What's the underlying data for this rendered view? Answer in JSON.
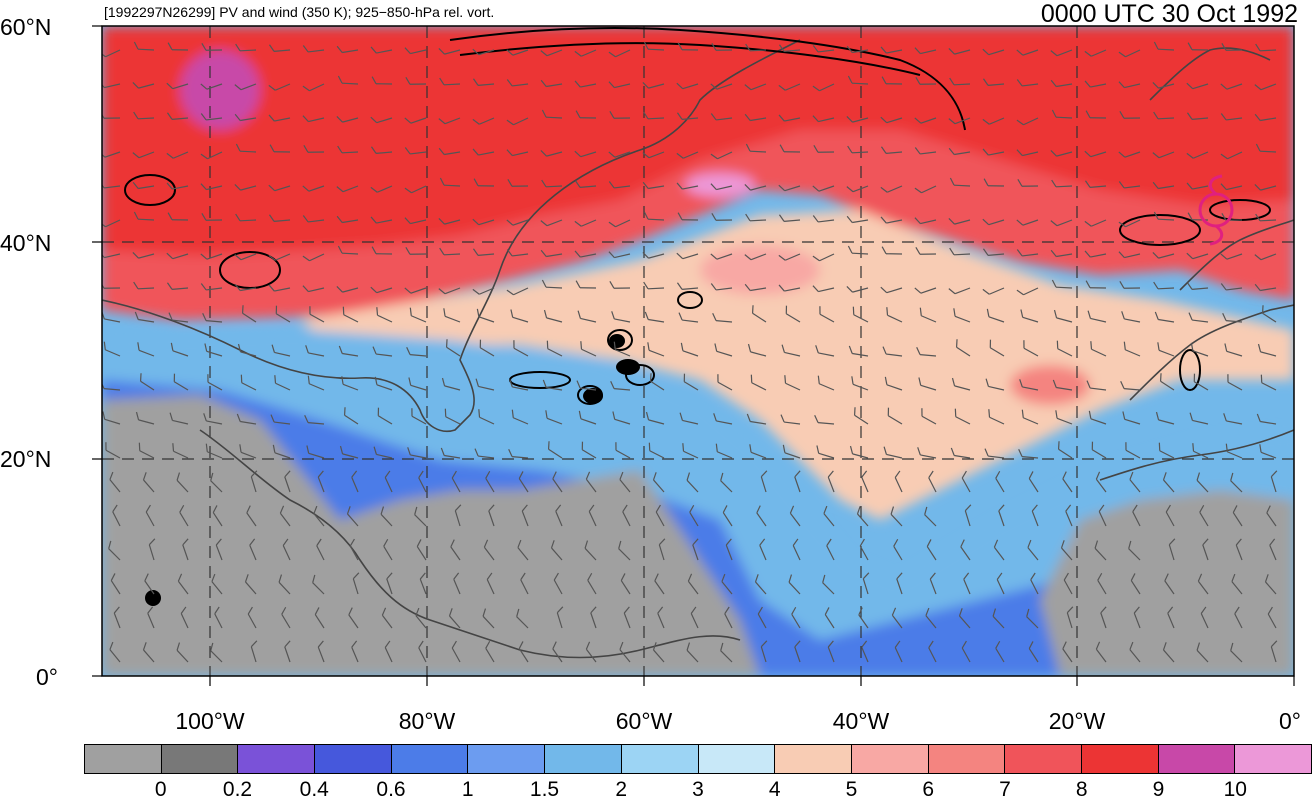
{
  "header": {
    "left_title": "[1992297N26299] PV and wind (350 K); 925−850-hPa rel. vort.",
    "right_title": "0000 UTC 30 Oct 1992"
  },
  "map": {
    "lat_labels": [
      "60°N",
      "40°N",
      "20°N",
      "0°"
    ],
    "lon_labels": [
      "100°W",
      "80°W",
      "60°W",
      "40°W",
      "20°W",
      "0°"
    ],
    "extent": {
      "lon_min": -110,
      "lon_max": 0,
      "lat_min": 0,
      "lat_max": 60
    },
    "pv_regions": [
      {
        "name": "northern-high-pv",
        "band": 8
      },
      {
        "name": "midlatitude-moderate-pv",
        "band": 6
      },
      {
        "name": "subtropical-low-pv",
        "band": 3
      },
      {
        "name": "tropical-very-low-pv",
        "band": 0
      }
    ],
    "storm_symbol": {
      "lon": -7,
      "lat": 43,
      "color": "#e0207f",
      "icon": "tropical-storm-symbol-icon"
    }
  },
  "colorbar": {
    "colors": [
      "#a0a0a0",
      "#787878",
      "#7a52d8",
      "#4658dc",
      "#4c7ce8",
      "#6c9cf0",
      "#72b8ea",
      "#9cd4f4",
      "#c8e8f8",
      "#f8ccb4",
      "#f8a8a4",
      "#f48480",
      "#f0545a",
      "#ec3434",
      "#c848a8",
      "#ec98d8"
    ],
    "labels": [
      "0",
      "0.2",
      "0.4",
      "0.6",
      "1",
      "1.5",
      "2",
      "3",
      "4",
      "5",
      "6",
      "7",
      "8",
      "9",
      "10"
    ]
  }
}
